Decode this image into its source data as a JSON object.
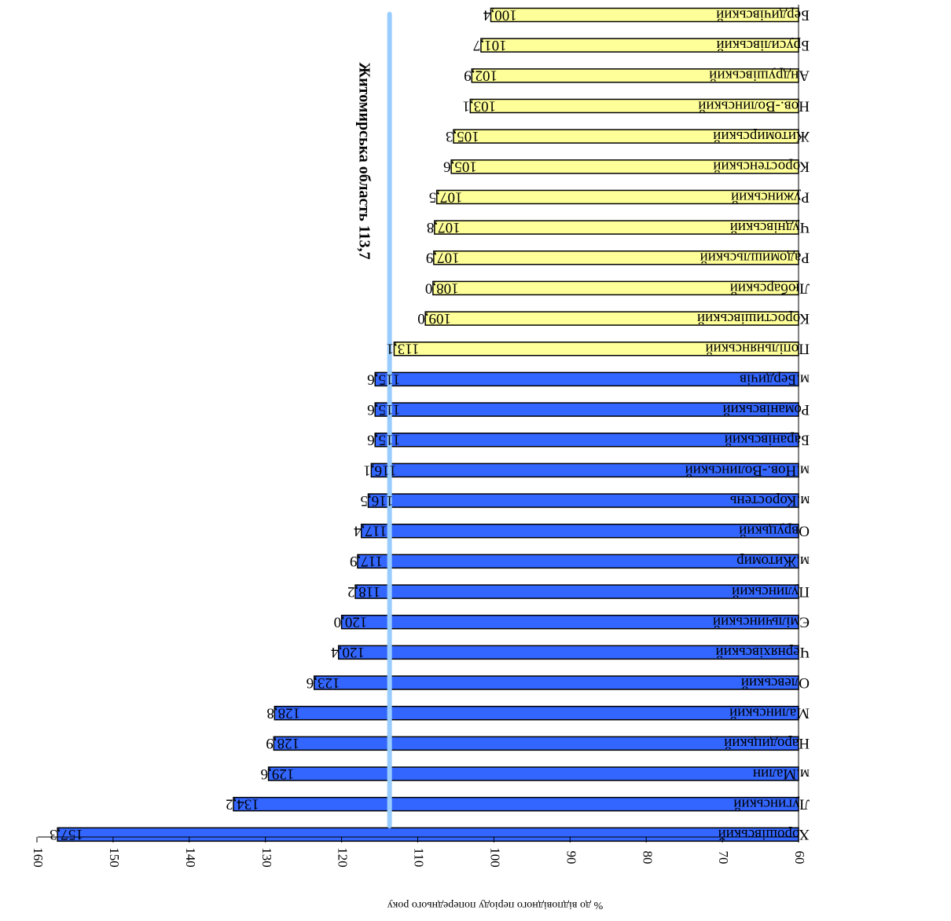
{
  "chart_data": {
    "type": "bar",
    "orientation": "horizontal",
    "rendering": "rotated-180",
    "xlabel": "% до відповідного періоду попереднього року",
    "xlim": [
      60,
      160
    ],
    "ticks": [
      60,
      70,
      80,
      90,
      100,
      110,
      120,
      130,
      140,
      150,
      160
    ],
    "reference_line": {
      "value": 113.7,
      "label": "Житомирська область  113,7"
    },
    "colors": {
      "above": "#3366ff",
      "below": "#ffff99",
      "reference": "#99ccff",
      "outline": "#000000"
    },
    "categories": [
      "Хорошівський",
      "Лугинський",
      "м.Малин",
      "Народицький",
      "Малинський",
      "Олевський",
      "Черняхівський",
      "Ємільчинський",
      "Пулинський",
      "м.Житомир",
      "Овруцький",
      "м.Коростень",
      "м.Нов.-Волинський",
      "Баранівський",
      "Романівський",
      "м.Бердичів",
      "Попільнянський",
      "Коростишівський",
      "Любарський",
      "Радомишльський",
      "Чуднівський",
      "Ружинський",
      "Коростенський",
      "Житомирський",
      "Нов.-Волинський",
      "Андрушівський",
      "Брусилівський",
      "Бердичівський"
    ],
    "values": [
      157.3,
      134.2,
      129.6,
      128.9,
      128.8,
      123.6,
      120.4,
      120.0,
      118.2,
      117.9,
      117.4,
      116.5,
      116.1,
      115.6,
      115.6,
      115.6,
      113.1,
      109.0,
      108.0,
      107.9,
      107.8,
      107.5,
      105.6,
      105.3,
      103.1,
      102.9,
      101.7,
      100.4
    ],
    "value_labels": [
      "157,3",
      "134,2",
      "129,6",
      "128,9",
      "128,8",
      "123,6",
      "120,4",
      "120,0",
      "118,2",
      "117,9",
      "117,4",
      "116,5",
      "116,1",
      "115,6",
      "115,6",
      "115,6",
      "113,1",
      "109,0",
      "108,0",
      "107,9",
      "107,8",
      "107,5",
      "105,6",
      "105,3",
      "103,1",
      "102,9",
      "101,7",
      "100,4"
    ]
  }
}
